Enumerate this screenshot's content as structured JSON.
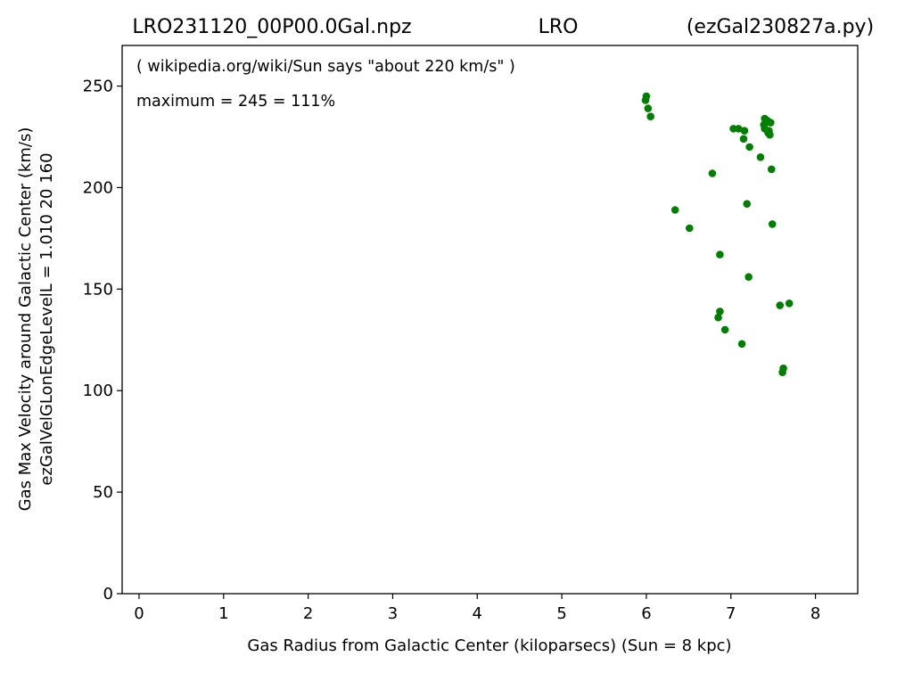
{
  "chart_data": {
    "type": "scatter",
    "title_left": "LRO231120_00P00.0Gal.npz",
    "title_center": "LRO",
    "title_right": "(ezGal230827a.py)",
    "xlabel": "Gas Radius from Galactic Center (kiloparsecs)  (Sun = 8 kpc)",
    "ylabel_line1": "Gas Max Velocity around Galactic Center (km/s)",
    "ylabel_line2": "ezGalVelGLonEdgeLevelL = 1.010  20  160",
    "annotation1": "( wikipedia.org/wiki/Sun says \"about 220 km/s\" )",
    "annotation2": "maximum = 245 = 111%",
    "xlim": [
      -0.2,
      8.5
    ],
    "ylim": [
      0,
      270
    ],
    "xticks": [
      "0",
      "1",
      "2",
      "3",
      "4",
      "5",
      "6",
      "7",
      "8"
    ],
    "yticks": [
      "0",
      "50",
      "100",
      "150",
      "200",
      "250"
    ],
    "color": "#008000",
    "points": [
      [
        5.99,
        243
      ],
      [
        6.0,
        245
      ],
      [
        6.02,
        239
      ],
      [
        6.05,
        235
      ],
      [
        6.34,
        189
      ],
      [
        6.51,
        180
      ],
      [
        6.78,
        207
      ],
      [
        6.85,
        136
      ],
      [
        6.87,
        139
      ],
      [
        6.87,
        167
      ],
      [
        6.93,
        130
      ],
      [
        7.03,
        229
      ],
      [
        7.09,
        229
      ],
      [
        7.13,
        123
      ],
      [
        7.15,
        224
      ],
      [
        7.16,
        228
      ],
      [
        7.19,
        192
      ],
      [
        7.21,
        156
      ],
      [
        7.22,
        220
      ],
      [
        7.35,
        215
      ],
      [
        7.39,
        231
      ],
      [
        7.4,
        229
      ],
      [
        7.4,
        234
      ],
      [
        7.41,
        232
      ],
      [
        7.43,
        233
      ],
      [
        7.44,
        227
      ],
      [
        7.45,
        228
      ],
      [
        7.46,
        226
      ],
      [
        7.47,
        232
      ],
      [
        7.48,
        209
      ],
      [
        7.49,
        182
      ],
      [
        7.58,
        142
      ],
      [
        7.61,
        109
      ],
      [
        7.62,
        111
      ],
      [
        7.69,
        143
      ]
    ]
  }
}
